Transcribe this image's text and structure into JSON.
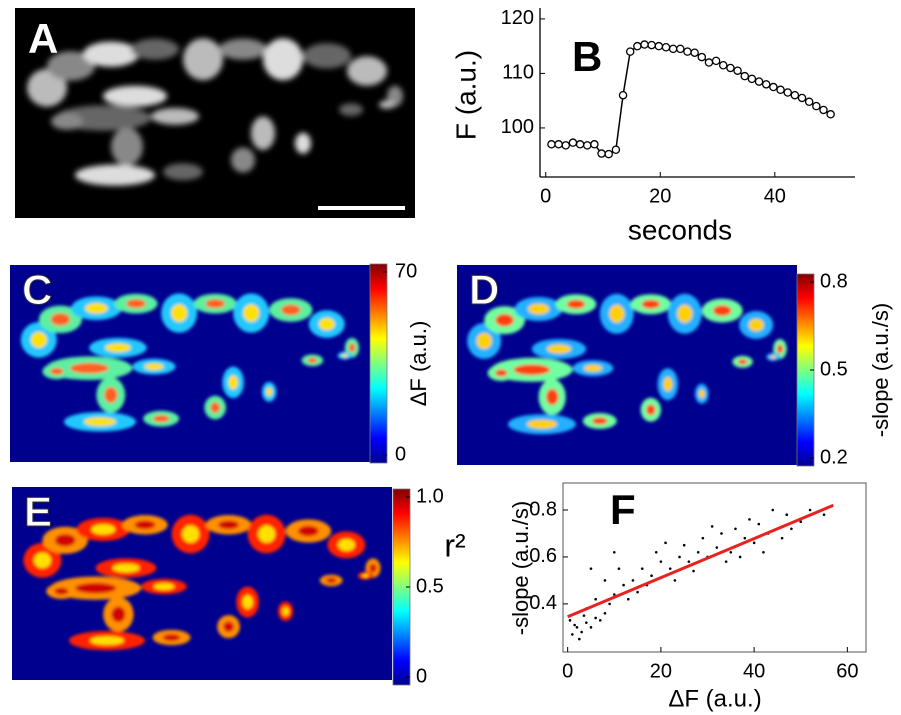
{
  "chart_data": [
    {
      "type": "image",
      "panel": "A"
    },
    {
      "type": "line",
      "panel": "B",
      "xlabel": "seconds",
      "ylabel": "F (a.u.)",
      "x": [
        1,
        2.25,
        3.5,
        4.75,
        6,
        7.25,
        8.5,
        9.75,
        11,
        12.25,
        13.5,
        14.75,
        16,
        17.25,
        18.5,
        19.75,
        21,
        22.25,
        23.5,
        24.75,
        26,
        27.25,
        28.5,
        29.75,
        31,
        32.25,
        33.5,
        34.75,
        36,
        37.25,
        38.5,
        39.75,
        41,
        42.25,
        43.5,
        44.75,
        46,
        47.25,
        48.5,
        49.75
      ],
      "series": [
        {
          "color": "#000000",
          "values": [
            97,
            97,
            96.8,
            97.3,
            97,
            96.8,
            97,
            95.3,
            95.2,
            96,
            106,
            114,
            115,
            115.3,
            115.2,
            115,
            114.8,
            114.5,
            114.5,
            114,
            113.8,
            113,
            112,
            112.3,
            111.5,
            111,
            110.5,
            109.5,
            109,
            108.5,
            108,
            107.5,
            107,
            106.5,
            106,
            105.5,
            104.8,
            104,
            103.3,
            102.5
          ]
        }
      ],
      "xlim": [
        -1,
        54
      ],
      "ylim": [
        91,
        122
      ],
      "xticks": [
        0,
        20,
        40
      ],
      "yticks": [
        100,
        110,
        120
      ],
      "marker": "circle"
    },
    {
      "type": "heatmap",
      "panel": "C",
      "colorbar_label": "ΔF (a.u.)",
      "clim": [
        0,
        70
      ],
      "cticks": [
        0,
        70
      ],
      "colormap": "jet"
    },
    {
      "type": "heatmap",
      "panel": "D",
      "colorbar_label": "-slope (a.u./s)",
      "clim": [
        0.2,
        0.8
      ],
      "cticks": [
        0.2,
        0.5,
        0.8
      ],
      "colormap": "jet"
    },
    {
      "type": "heatmap",
      "panel": "E",
      "colorbar_label": "r²",
      "clim": [
        0,
        1
      ],
      "cticks": [
        0,
        0.5,
        {
          "value": 1,
          "label": "1.0"
        }
      ],
      "colormap": "jet"
    },
    {
      "type": "scatter",
      "panel": "F",
      "xlabel": "ΔF (a.u.)",
      "ylabel": "-slope (a.u./s)",
      "color": "#000000",
      "x": [
        1,
        2,
        3,
        4,
        5,
        6,
        2.5,
        7,
        8,
        3.5,
        1.5,
        9,
        10,
        12,
        14,
        15,
        16,
        18,
        20,
        19,
        22,
        24,
        25,
        23,
        26,
        28,
        30,
        29,
        32,
        33,
        35,
        36,
        38,
        40,
        41,
        43,
        45,
        47,
        50,
        52,
        55,
        11,
        13,
        17,
        21,
        27,
        31,
        34,
        37,
        39,
        42,
        44,
        46,
        48,
        6,
        4,
        8,
        0.5,
        5,
        10
      ],
      "y": [
        0.27,
        0.3,
        0.28,
        0.32,
        0.3,
        0.34,
        0.25,
        0.33,
        0.36,
        0.35,
        0.31,
        0.4,
        0.44,
        0.48,
        0.5,
        0.45,
        0.55,
        0.52,
        0.58,
        0.62,
        0.55,
        0.6,
        0.65,
        0.5,
        0.58,
        0.62,
        0.6,
        0.68,
        0.64,
        0.7,
        0.62,
        0.72,
        0.68,
        0.66,
        0.74,
        0.7,
        0.72,
        0.78,
        0.75,
        0.8,
        0.78,
        0.55,
        0.42,
        0.48,
        0.66,
        0.54,
        0.73,
        0.58,
        0.6,
        0.76,
        0.62,
        0.8,
        0.68,
        0.72,
        0.42,
        0.38,
        0.5,
        0.33,
        0.55,
        0.62
      ],
      "fit": {
        "x": [
          0,
          57
        ],
        "y": [
          0.345,
          0.82
        ],
        "color": "#e8221e"
      },
      "xlim": [
        -1,
        64
      ],
      "ylim": [
        0.195,
        0.915
      ],
      "xticks": [
        0,
        20,
        40,
        60
      ],
      "yticks": [
        0.4,
        0.6,
        0.8
      ]
    }
  ]
}
